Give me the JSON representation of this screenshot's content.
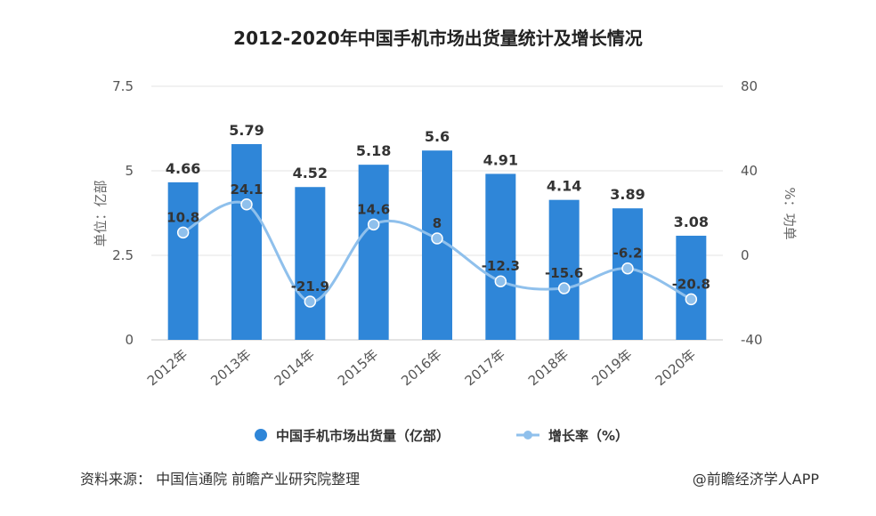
{
  "chart_data": {
    "type": "bar",
    "title": "2012-2020年中国手机市场出货量统计及增长情况",
    "categories": [
      "2012年",
      "2013年",
      "2014年",
      "2015年",
      "2016年",
      "2017年",
      "2018年",
      "2019年",
      "2020年"
    ],
    "series": [
      {
        "name": "中国手机市场出货量（亿部）",
        "type": "bar",
        "axis": "left",
        "values": [
          4.66,
          5.79,
          4.52,
          5.18,
          5.6,
          4.91,
          4.14,
          3.89,
          3.08
        ],
        "labels": [
          "4.66",
          "5.79",
          "4.52",
          "5.18",
          "5.6",
          "4.91",
          "4.14",
          "3.89",
          "3.08"
        ],
        "color": "#2f86d8"
      },
      {
        "name": "增长率（%）",
        "type": "line",
        "axis": "right",
        "values": [
          10.8,
          24.1,
          -21.9,
          14.6,
          8,
          -12.3,
          -15.6,
          -6.2,
          -20.8
        ],
        "labels": [
          "10.8",
          "24.1",
          "-21.9",
          "14.6",
          "8",
          "-12.3",
          "-15.6",
          "-6.2",
          "-20.8"
        ],
        "color": "#8fc0ec"
      }
    ],
    "y_left": {
      "label": "单位：亿部",
      "ylim": [
        0,
        7.5
      ],
      "ticks": [
        0,
        2.5,
        5,
        7.5
      ],
      "tick_labels": [
        "0",
        "2.5",
        "5",
        "7.5"
      ]
    },
    "y_right": {
      "label": "%：功单",
      "ylim": [
        -40,
        80
      ],
      "ticks": [
        -40,
        0,
        40,
        80
      ],
      "tick_labels": [
        "-40",
        "0",
        "40",
        "80"
      ]
    },
    "grid": true,
    "legend_position": "bottom"
  },
  "footer": {
    "source": "资料来源：  中国信通院 前瞻产业研究院整理",
    "brand": "@前瞻经济学人APP"
  }
}
